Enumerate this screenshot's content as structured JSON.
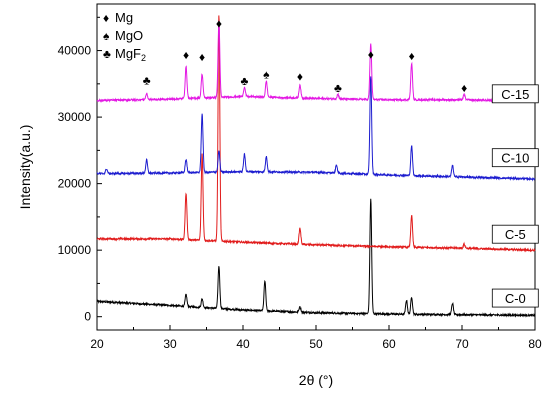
{
  "chart_data": {
    "type": "line",
    "xlabel": "2θ (°)",
    "ylabel": "Intensity(a.u.)",
    "xlim": [
      20,
      80
    ],
    "ylim": [
      -2000,
      47000
    ],
    "xticks": [
      20,
      30,
      40,
      50,
      60,
      70,
      80
    ],
    "yticks": [
      0,
      10000,
      20000,
      30000,
      40000
    ],
    "grid": false,
    "legend": {
      "placement": "top-left",
      "entries": [
        {
          "symbol": "♦",
          "label": "Mg"
        },
        {
          "symbol": "♠",
          "label": "MgO"
        },
        {
          "symbol": "♣",
          "label": "MgF",
          "subscript": "2"
        }
      ]
    },
    "series": [
      {
        "name": "C-0",
        "color": "#000000",
        "baseline": [
          [
            20,
            2300
          ],
          [
            30,
            1700
          ],
          [
            40,
            1000
          ],
          [
            50,
            600
          ],
          [
            60,
            400
          ],
          [
            70,
            300
          ],
          [
            80,
            200
          ]
        ],
        "peaks": [
          [
            32.2,
            1800
          ],
          [
            34.4,
            1300
          ],
          [
            36.7,
            6400
          ],
          [
            43.0,
            4500
          ],
          [
            47.8,
            800
          ],
          [
            57.5,
            17300
          ],
          [
            62.4,
            2100
          ],
          [
            63.1,
            2600
          ],
          [
            68.7,
            1700
          ]
        ]
      },
      {
        "name": "C-5",
        "color": "#e11b1b",
        "baseline": [
          [
            20,
            11700
          ],
          [
            30,
            11700
          ],
          [
            40,
            11200
          ],
          [
            50,
            10800
          ],
          [
            60,
            10500
          ],
          [
            70,
            10300
          ],
          [
            80,
            10000
          ]
        ],
        "peaks": [
          [
            32.2,
            7000
          ],
          [
            34.4,
            13000
          ],
          [
            36.7,
            34000
          ],
          [
            47.8,
            2400
          ],
          [
            63.1,
            4800
          ],
          [
            70.3,
            600
          ]
        ]
      },
      {
        "name": "C-10",
        "color": "#1c1ccf",
        "baseline": [
          [
            20,
            21500
          ],
          [
            30,
            21600
          ],
          [
            40,
            21800
          ],
          [
            50,
            21700
          ],
          [
            60,
            21300
          ],
          [
            70,
            21000
          ],
          [
            80,
            20700
          ]
        ],
        "peaks": [
          [
            21.3,
            700
          ],
          [
            26.8,
            2000
          ],
          [
            32.2,
            2000
          ],
          [
            34.4,
            8800
          ],
          [
            36.7,
            3200
          ],
          [
            40.2,
            2600
          ],
          [
            43.2,
            2300
          ],
          [
            52.8,
            1200
          ],
          [
            57.5,
            14800
          ],
          [
            63.1,
            4500
          ],
          [
            68.7,
            1700
          ]
        ]
      },
      {
        "name": "C-15",
        "color": "#e318e3",
        "baseline": [
          [
            20,
            32500
          ],
          [
            30,
            32700
          ],
          [
            40,
            33100
          ],
          [
            50,
            32800
          ],
          [
            60,
            32600
          ],
          [
            70,
            32600
          ],
          [
            80,
            32400
          ]
        ],
        "peaks": [
          [
            26.8,
            900
          ],
          [
            32.2,
            4800
          ],
          [
            34.4,
            3600
          ],
          [
            36.7,
            11400
          ],
          [
            40.2,
            1400
          ],
          [
            43.2,
            2400
          ],
          [
            47.8,
            2000
          ],
          [
            53.0,
            700
          ],
          [
            57.5,
            8400
          ],
          [
            63.1,
            5500
          ],
          [
            70.3,
            800
          ]
        ]
      }
    ],
    "annotations": [
      {
        "symbol": "♦",
        "x": 36.7,
        "y": 43500
      },
      {
        "symbol": "♦",
        "x": 32.2,
        "y": 38700
      },
      {
        "symbol": "♦",
        "x": 34.4,
        "y": 38400
      },
      {
        "symbol": "♦",
        "x": 47.8,
        "y": 35500
      },
      {
        "symbol": "♦",
        "x": 57.5,
        "y": 38800
      },
      {
        "symbol": "♦",
        "x": 63.1,
        "y": 38600
      },
      {
        "symbol": "♦",
        "x": 70.3,
        "y": 33800
      },
      {
        "symbol": "♠",
        "x": 43.2,
        "y": 35800
      },
      {
        "symbol": "♣",
        "x": 26.8,
        "y": 34900
      },
      {
        "symbol": "♣",
        "x": 40.2,
        "y": 34800
      },
      {
        "symbol": "♣",
        "x": 53.0,
        "y": 33800
      }
    ],
    "labels": [
      {
        "text": "C-15",
        "x": 77.3,
        "y": 33500
      },
      {
        "text": "C-10",
        "x": 77.3,
        "y": 23900
      },
      {
        "text": "C-5",
        "x": 77.3,
        "y": 12400
      },
      {
        "text": "C-0",
        "x": 77.3,
        "y": 2800
      }
    ]
  }
}
